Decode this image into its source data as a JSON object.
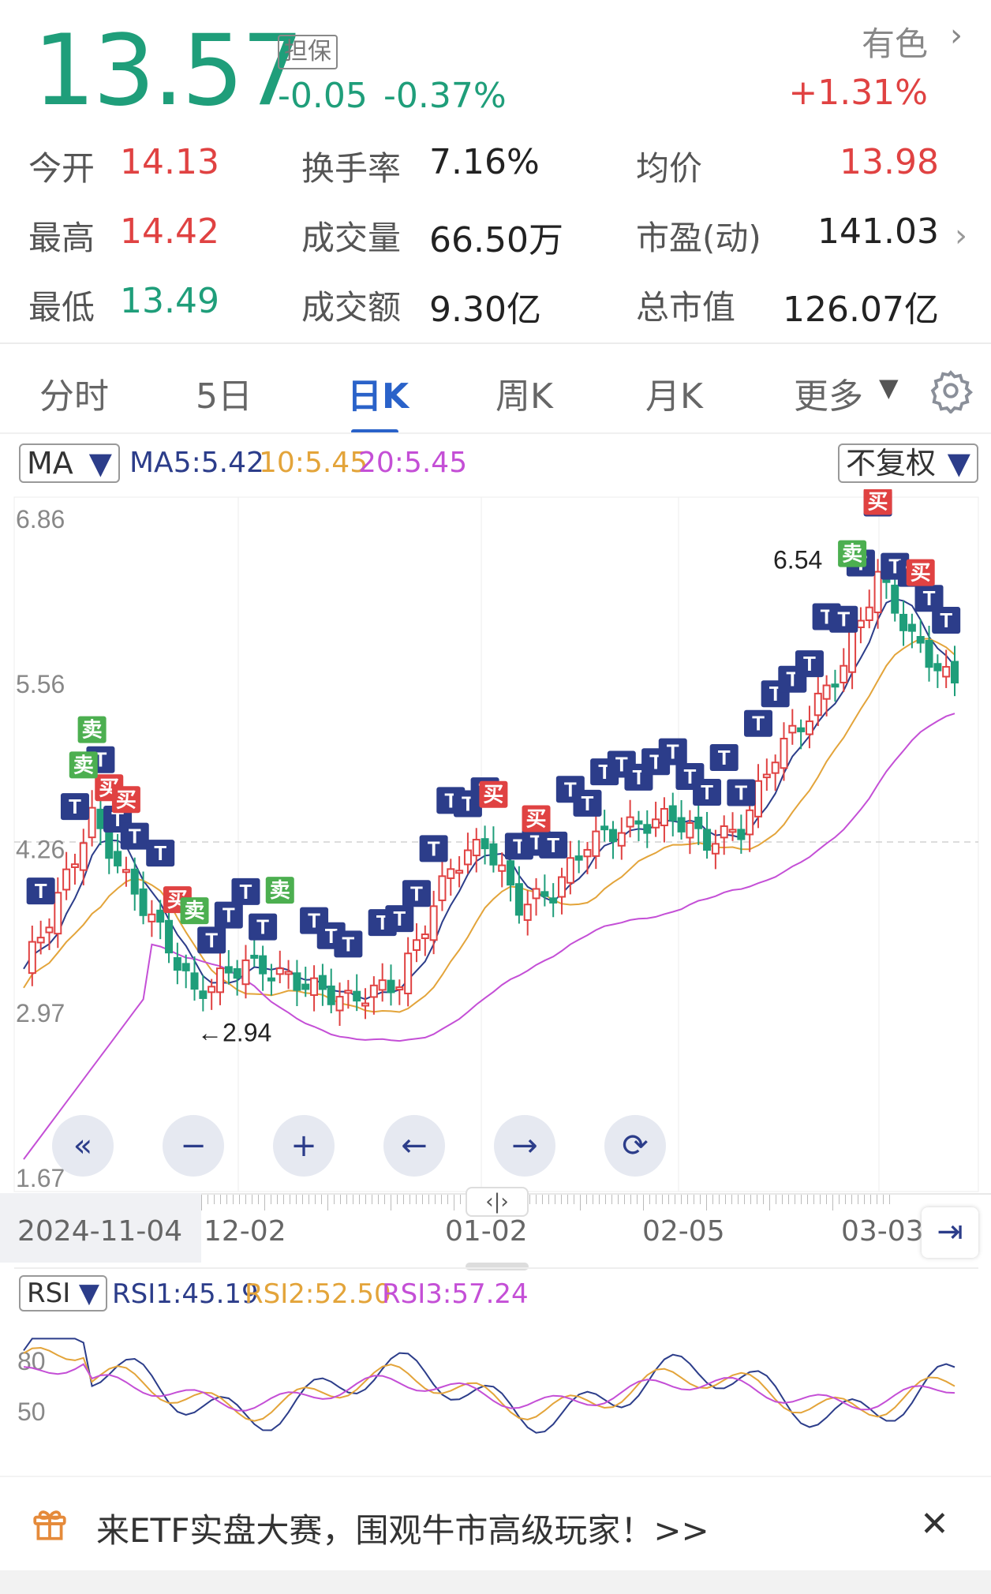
{
  "header": {
    "price": "13.57",
    "tag": "担保",
    "change": "-0.05",
    "change_pct": "-0.37%",
    "sector": "有色",
    "sector_chevron": "›",
    "sector_pct": "+1.31%"
  },
  "quote": {
    "open_label": "今开",
    "open": "14.13",
    "high_label": "最高",
    "high": "14.42",
    "low_label": "最低",
    "low": "13.49",
    "turnover_label": "换手率",
    "turnover": "7.16%",
    "volume_label": "成交量",
    "volume": "66.50万",
    "amount_label": "成交额",
    "amount": "9.30亿",
    "avg_label": "均价",
    "avg": "13.98",
    "pe_label": "市盈(动)",
    "pe": "141.03",
    "mcap_label": "总市值",
    "mcap": "126.07亿",
    "pe_chevron": "›"
  },
  "tabs": [
    {
      "label": "分时"
    },
    {
      "label": "5日"
    },
    {
      "label": "日K"
    },
    {
      "label": "周K"
    },
    {
      "label": "月K"
    },
    {
      "label": "更多"
    }
  ],
  "tab_more_arrow": "▼",
  "chart": {
    "indicator_select": "MA",
    "select_arrow": "▼",
    "ma5": "MA5:5.42",
    "ma10": "10:5.45",
    "ma20": "20:5.45",
    "adjust_select": "不复权",
    "y_ticks": [
      "6.86",
      "5.56",
      "4.26",
      "2.97",
      "1.67"
    ],
    "x_ticks": [
      "2024-11-04",
      "12-02",
      "01-02",
      "02-05",
      "03-03"
    ],
    "high_annot": "6.54",
    "low_annot": "←2.94",
    "marker_t": "T",
    "marker_buy": "买",
    "marker_sell": "卖",
    "colors": {
      "ma5": "#2c3d8a",
      "ma10": "#e3a43a",
      "ma20": "#c44fd6",
      "up": "#e04242",
      "down": "#1f9e7a",
      "tmark": "#2c3d8a"
    },
    "nav_icons": [
      "double-left-icon",
      "zoom-out-icon",
      "zoom-in-icon",
      "arrow-left-icon",
      "arrow-right-icon",
      "rotate-icon"
    ],
    "nav_glyphs": [
      "«",
      "−",
      "+",
      "←",
      "→",
      "⟳"
    ],
    "scroll_handle": "‹|›",
    "jump_end": "⇥"
  },
  "chart_data": {
    "type": "candlestick",
    "ylim": [
      1.67,
      6.86
    ],
    "y_ticks": [
      6.86,
      5.56,
      4.26,
      2.97,
      1.67
    ],
    "x_ticks": [
      "2024-11-04",
      "12-02",
      "01-02",
      "02-05",
      "03-03"
    ],
    "annotations": [
      {
        "text": "6.54"
      },
      {
        "text": "←2.94"
      }
    ],
    "legend": [
      "MA5:5.42",
      "10:5.45",
      "20:5.45"
    ]
  },
  "rsi": {
    "select": "RSI",
    "select_arrow": "▼",
    "rsi1": "RSI1:45.19",
    "rsi2": "RSI2:52.50",
    "rsi3": "RSI3:57.24",
    "y_ticks": [
      "80",
      "50"
    ]
  },
  "banner": {
    "text": "来ETF实盘大赛，围观牛市高级玩家！>>",
    "close": "✕"
  }
}
